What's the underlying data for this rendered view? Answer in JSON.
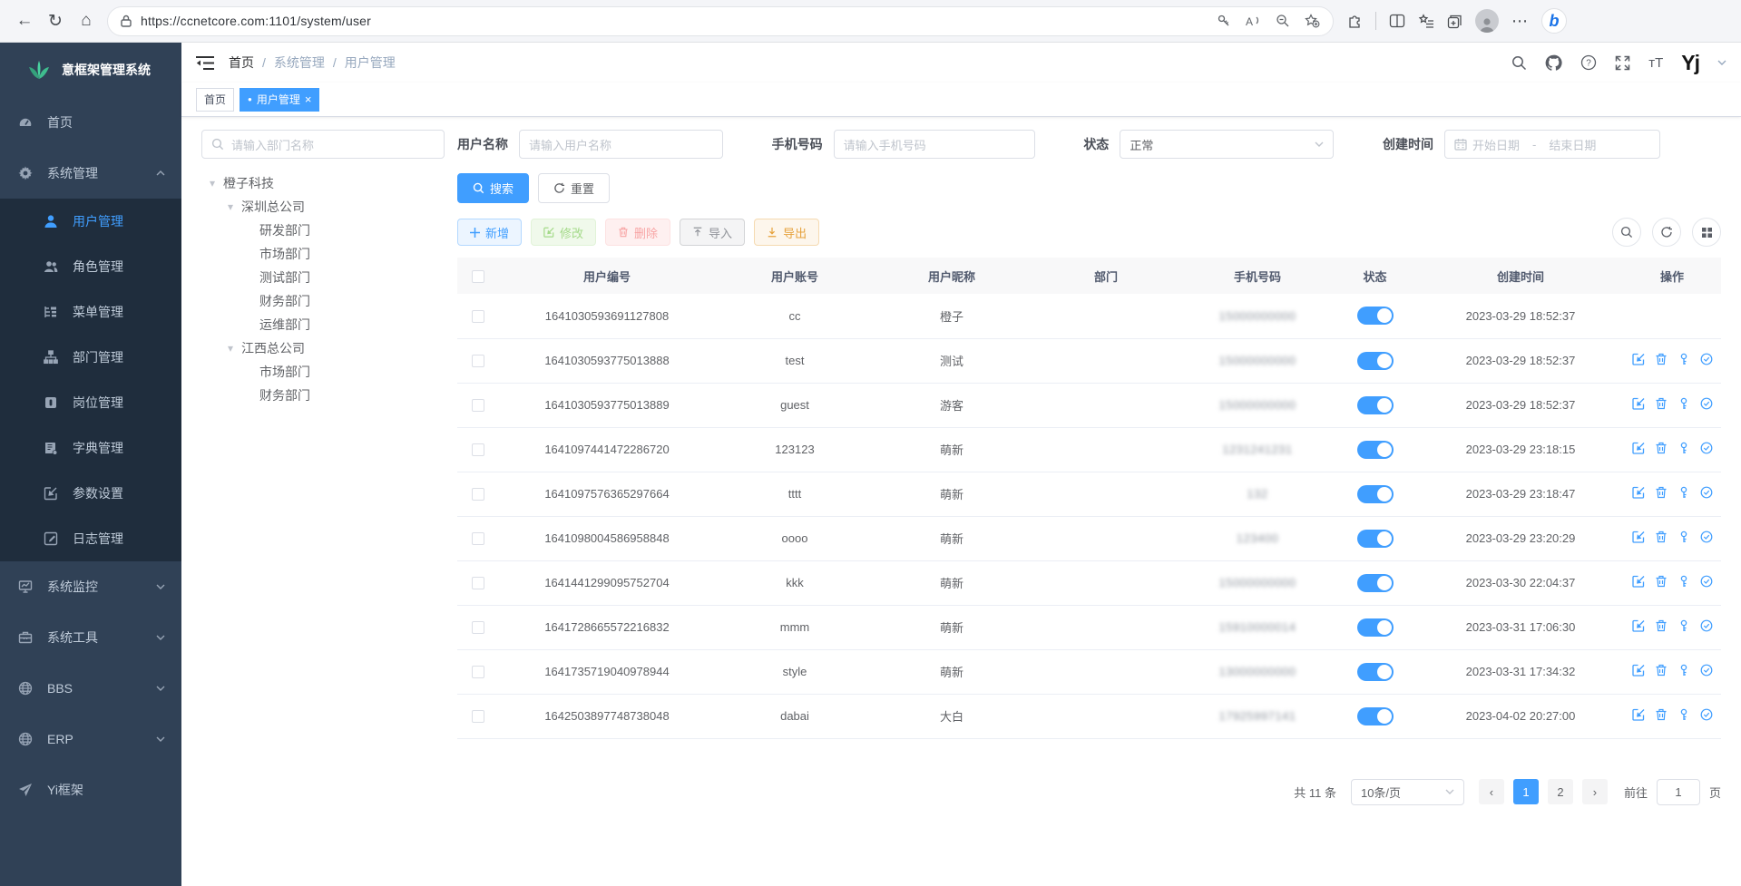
{
  "browser": {
    "url": "https://ccnetcore.com:1101/system/user"
  },
  "glyphs": {
    "back": "←",
    "refresh": "↻",
    "home": "⌂",
    "more": "⋯",
    "star": "☆",
    "tab_dot": "●",
    "tab_close": "×",
    "tree_caret": "▾",
    "breadcrumb_sep": "/",
    "date_sep": "-",
    "pager_prev": "‹",
    "pager_next": "›",
    "font_size_icon": "тT",
    "bing": "b"
  },
  "app": {
    "title": "意框架管理系统"
  },
  "sidebar": {
    "items": [
      {
        "label": "首页"
      },
      {
        "label": "系统管理"
      },
      {
        "label": "用户管理"
      },
      {
        "label": "角色管理"
      },
      {
        "label": "菜单管理"
      },
      {
        "label": "部门管理"
      },
      {
        "label": "岗位管理"
      },
      {
        "label": "字典管理"
      },
      {
        "label": "参数设置"
      },
      {
        "label": "日志管理"
      },
      {
        "label": "系统监控"
      },
      {
        "label": "系统工具"
      },
      {
        "label": "BBS"
      },
      {
        "label": "ERP"
      },
      {
        "label": "Yi框架"
      }
    ]
  },
  "navbar": {
    "breadcrumb": [
      "首页",
      "系统管理",
      "用户管理"
    ],
    "avatar_text": "Yj"
  },
  "tabs": [
    {
      "label": "首页"
    },
    {
      "label": "用户管理"
    }
  ],
  "filters": {
    "dept_search_placeholder": "请输入部门名称",
    "username_label": "用户名称",
    "username_placeholder": "请输入用户名称",
    "phone_label": "手机号码",
    "phone_placeholder": "请输入手机号码",
    "status_label": "状态",
    "status_value": "正常",
    "created_label": "创建时间",
    "date_start_placeholder": "开始日期",
    "date_end_placeholder": "结束日期",
    "search_button": "搜索",
    "reset_button": "重置"
  },
  "tree": [
    {
      "label": "橙子科技",
      "level": 0,
      "expandable": true
    },
    {
      "label": "深圳总公司",
      "level": 1,
      "expandable": true
    },
    {
      "label": "研发部门",
      "level": 2,
      "expandable": false
    },
    {
      "label": "市场部门",
      "level": 2,
      "expandable": false
    },
    {
      "label": "测试部门",
      "level": 2,
      "expandable": false
    },
    {
      "label": "财务部门",
      "level": 2,
      "expandable": false
    },
    {
      "label": "运维部门",
      "level": 2,
      "expandable": false
    },
    {
      "label": "江西总公司",
      "level": 1,
      "expandable": true
    },
    {
      "label": "市场部门",
      "level": 2,
      "expandable": false
    },
    {
      "label": "财务部门",
      "level": 2,
      "expandable": false
    }
  ],
  "toolbar": {
    "add": "新增",
    "edit": "修改",
    "delete": "删除",
    "import": "导入",
    "export": "导出"
  },
  "table": {
    "columns": [
      "用户编号",
      "用户账号",
      "用户昵称",
      "部门",
      "手机号码",
      "状态",
      "创建时间",
      "操作"
    ],
    "rows": [
      {
        "id": "1641030593691127808",
        "account": "cc",
        "nickname": "橙子",
        "dept": "",
        "phone": "15000000000",
        "phone_masked": true,
        "status_on": true,
        "created": "2023-03-29 18:52:37",
        "actions": false
      },
      {
        "id": "1641030593775013888",
        "account": "test",
        "nickname": "测试",
        "dept": "",
        "phone": "15000000000",
        "phone_masked": true,
        "status_on": true,
        "created": "2023-03-29 18:52:37",
        "actions": true
      },
      {
        "id": "1641030593775013889",
        "account": "guest",
        "nickname": "游客",
        "dept": "",
        "phone": "15000000000",
        "phone_masked": true,
        "status_on": true,
        "created": "2023-03-29 18:52:37",
        "actions": true
      },
      {
        "id": "1641097441472286720",
        "account": "123123",
        "nickname": "萌新",
        "dept": "",
        "phone": "1231241231",
        "phone_masked": true,
        "status_on": true,
        "created": "2023-03-29 23:18:15",
        "actions": true
      },
      {
        "id": "1641097576365297664",
        "account": "tttt",
        "nickname": "萌新",
        "dept": "",
        "phone": "132",
        "phone_masked": true,
        "status_on": true,
        "created": "2023-03-29 23:18:47",
        "actions": true
      },
      {
        "id": "1641098004586958848",
        "account": "oooo",
        "nickname": "萌新",
        "dept": "",
        "phone": "123400",
        "phone_masked": true,
        "status_on": true,
        "created": "2023-03-29 23:20:29",
        "actions": true
      },
      {
        "id": "1641441299095752704",
        "account": "kkk",
        "nickname": "萌新",
        "dept": "",
        "phone": "15000000000",
        "phone_masked": true,
        "status_on": true,
        "created": "2023-03-30 22:04:37",
        "actions": true
      },
      {
        "id": "1641728665572216832",
        "account": "mmm",
        "nickname": "萌新",
        "dept": "",
        "phone": "15910000014",
        "phone_masked": true,
        "status_on": true,
        "created": "2023-03-31 17:06:30",
        "actions": true
      },
      {
        "id": "1641735719040978944",
        "account": "style",
        "nickname": "萌新",
        "dept": "",
        "phone": "13000000000",
        "phone_masked": true,
        "status_on": true,
        "created": "2023-03-31 17:34:32",
        "actions": true
      },
      {
        "id": "1642503897748738048",
        "account": "dabai",
        "nickname": "大白",
        "dept": "",
        "phone": "17925997141",
        "phone_masked": true,
        "status_on": true,
        "created": "2023-04-02 20:27:00",
        "actions": true
      }
    ]
  },
  "pagination": {
    "total_text": "共 11 条",
    "page_size": "10条/页",
    "pages": [
      "1",
      "2"
    ],
    "active_page": "1",
    "goto_label": "前往",
    "goto_value": "1",
    "page_suffix": "页"
  },
  "colors": {
    "primary": "#409eff",
    "sidebar_bg": "#304156",
    "submenu_bg": "#1f2d3d",
    "sidebar_text": "#bfcbd9",
    "success": "#67c23a",
    "danger": "#f56c6c",
    "warning": "#e6a23c",
    "info": "#909399",
    "table_border": "#ebeef5"
  }
}
